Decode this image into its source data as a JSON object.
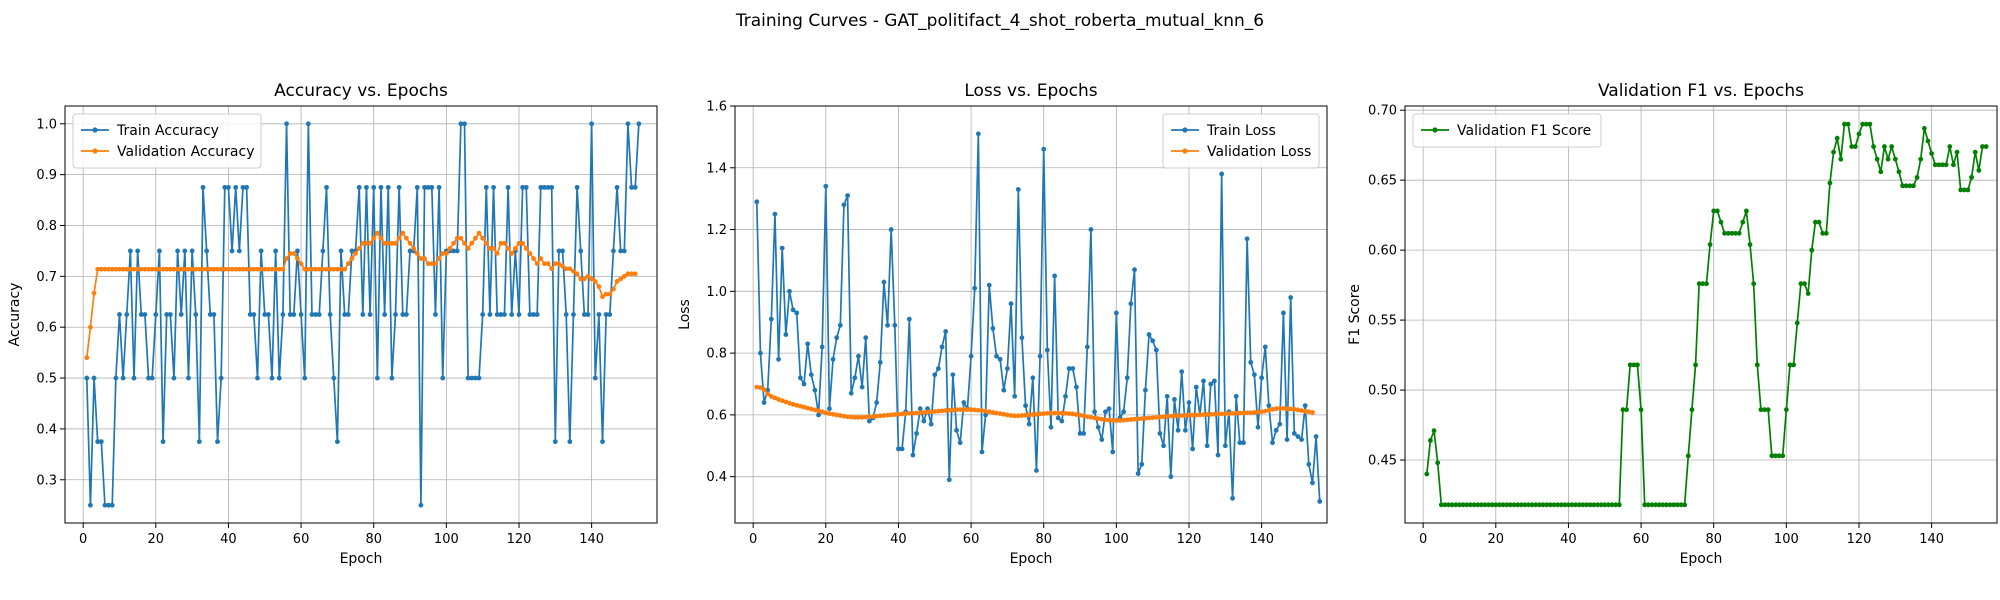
{
  "figure": {
    "suptitle": "Training Curves - GAT_politifact_4_shot_roberta_mutual_knn_6"
  },
  "colors": {
    "blue": "#1f77b4",
    "orange": "#ff7f0e",
    "green": "#008000"
  },
  "chart_data": [
    {
      "type": "line",
      "title": "Accuracy vs. Epochs",
      "xlabel": "Epoch",
      "ylabel": "Accuracy",
      "xlim": [
        -5,
        158
      ],
      "ylim": [
        0.215,
        1.035
      ],
      "xticks": [
        0,
        20,
        40,
        60,
        80,
        100,
        120,
        140
      ],
      "yticks": [
        0.3,
        0.4,
        0.5,
        0.6,
        0.7,
        0.8,
        0.9,
        1.0
      ],
      "tick_format": 1,
      "grid": true,
      "legend": "upper left",
      "series": [
        {
          "name": "Train Accuracy",
          "color": "#1f77b4",
          "values": [
            0.5,
            0.25,
            0.5,
            0.375,
            0.375,
            0.25,
            0.25,
            0.25,
            0.5,
            0.625,
            0.5,
            0.625,
            0.75,
            0.5,
            0.75,
            0.625,
            0.625,
            0.5,
            0.5,
            0.625,
            0.75,
            0.375,
            0.625,
            0.625,
            0.5,
            0.75,
            0.625,
            0.75,
            0.5,
            0.75,
            0.625,
            0.375,
            0.875,
            0.75,
            0.625,
            0.625,
            0.375,
            0.5,
            0.875,
            0.875,
            0.75,
            0.875,
            0.75,
            0.875,
            0.875,
            0.625,
            0.625,
            0.5,
            0.75,
            0.625,
            0.625,
            0.5,
            0.75,
            0.5,
            0.625,
            1.0,
            0.625,
            0.625,
            0.75,
            0.625,
            0.5,
            1.0,
            0.625,
            0.625,
            0.625,
            0.75,
            0.875,
            0.625,
            0.5,
            0.375,
            0.75,
            0.625,
            0.625,
            0.75,
            0.75,
            0.875,
            0.625,
            0.875,
            0.625,
            0.875,
            0.5,
            0.875,
            0.625,
            0.875,
            0.5,
            0.625,
            0.875,
            0.625,
            0.625,
            0.75,
            0.75,
            0.875,
            0.25,
            0.875,
            0.875,
            0.875,
            0.625,
            0.875,
            0.5,
            0.75,
            0.75,
            0.75,
            0.75,
            1.0,
            1.0,
            0.5,
            0.5,
            0.5,
            0.5,
            0.625,
            0.875,
            0.625,
            0.875,
            0.625,
            0.625,
            0.625,
            0.875,
            0.625,
            0.75,
            0.625,
            0.875,
            0.875,
            0.625,
            0.625,
            0.625,
            0.875,
            0.875,
            0.875,
            0.875,
            0.375,
            0.75,
            0.75,
            0.625,
            0.375,
            0.625,
            0.875,
            0.75,
            0.625,
            0.625,
            1.0,
            0.5,
            0.625,
            0.375,
            0.625,
            0.625,
            0.75,
            0.875,
            0.75,
            0.75,
            1.0,
            0.875,
            0.875,
            1.0
          ]
        },
        {
          "name": "Validation Accuracy",
          "color": "#ff7f0e",
          "values": [
            0.54,
            0.6,
            0.667,
            0.714,
            0.714,
            0.714,
            0.714,
            0.714,
            0.714,
            0.714,
            0.714,
            0.714,
            0.714,
            0.714,
            0.714,
            0.714,
            0.714,
            0.714,
            0.714,
            0.714,
            0.714,
            0.714,
            0.714,
            0.714,
            0.714,
            0.714,
            0.714,
            0.714,
            0.714,
            0.714,
            0.714,
            0.714,
            0.714,
            0.714,
            0.714,
            0.714,
            0.714,
            0.714,
            0.714,
            0.714,
            0.714,
            0.714,
            0.714,
            0.714,
            0.714,
            0.714,
            0.714,
            0.714,
            0.714,
            0.714,
            0.714,
            0.714,
            0.714,
            0.714,
            0.714,
            0.735,
            0.745,
            0.745,
            0.735,
            0.725,
            0.714,
            0.714,
            0.714,
            0.714,
            0.714,
            0.714,
            0.714,
            0.714,
            0.714,
            0.714,
            0.714,
            0.714,
            0.725,
            0.735,
            0.745,
            0.755,
            0.765,
            0.765,
            0.765,
            0.775,
            0.785,
            0.775,
            0.765,
            0.765,
            0.765,
            0.765,
            0.775,
            0.785,
            0.775,
            0.765,
            0.755,
            0.745,
            0.735,
            0.735,
            0.725,
            0.725,
            0.725,
            0.735,
            0.745,
            0.745,
            0.755,
            0.765,
            0.775,
            0.775,
            0.765,
            0.755,
            0.765,
            0.775,
            0.785,
            0.775,
            0.765,
            0.755,
            0.755,
            0.745,
            0.765,
            0.765,
            0.755,
            0.745,
            0.755,
            0.765,
            0.765,
            0.755,
            0.745,
            0.735,
            0.725,
            0.735,
            0.725,
            0.725,
            0.715,
            0.725,
            0.725,
            0.72,
            0.715,
            0.715,
            0.71,
            0.705,
            0.695,
            0.695,
            0.7,
            0.695,
            0.69,
            0.68,
            0.66,
            0.665,
            0.665,
            0.675,
            0.69,
            0.695,
            0.7,
            0.705,
            0.705,
            0.705
          ]
        }
      ]
    },
    {
      "type": "line",
      "title": "Loss vs. Epochs",
      "xlabel": "Epoch",
      "ylabel": "Loss",
      "xlim": [
        -5,
        158
      ],
      "ylim": [
        0.25,
        1.6
      ],
      "xticks": [
        0,
        20,
        40,
        60,
        80,
        100,
        120,
        140
      ],
      "yticks": [
        0.4,
        0.6,
        0.8,
        1.0,
        1.2,
        1.4,
        1.6
      ],
      "tick_format": 1,
      "grid": true,
      "legend": "upper right",
      "series": [
        {
          "name": "Train Loss",
          "color": "#1f77b4",
          "values": [
            1.29,
            0.8,
            0.64,
            0.68,
            0.91,
            1.25,
            0.78,
            1.14,
            0.86,
            1.0,
            0.94,
            0.93,
            0.72,
            0.7,
            0.83,
            0.73,
            0.68,
            0.6,
            0.82,
            1.34,
            0.62,
            0.78,
            0.85,
            0.89,
            1.28,
            1.31,
            0.67,
            0.72,
            0.79,
            0.69,
            0.85,
            0.58,
            0.59,
            0.64,
            0.77,
            1.03,
            0.89,
            1.2,
            0.89,
            0.49,
            0.49,
            0.61,
            0.91,
            0.47,
            0.54,
            0.62,
            0.58,
            0.62,
            0.57,
            0.73,
            0.75,
            0.82,
            0.87,
            0.39,
            0.73,
            0.55,
            0.51,
            0.64,
            0.62,
            0.79,
            1.01,
            1.51,
            0.48,
            0.6,
            1.02,
            0.88,
            0.79,
            0.78,
            0.68,
            0.75,
            0.96,
            0.66,
            1.33,
            0.85,
            0.63,
            0.57,
            0.72,
            0.42,
            0.79,
            1.46,
            0.81,
            0.56,
            1.05,
            0.59,
            0.58,
            0.66,
            0.75,
            0.75,
            0.69,
            0.54,
            0.54,
            0.82,
            1.2,
            0.61,
            0.56,
            0.52,
            0.61,
            0.62,
            0.48,
            0.93,
            0.59,
            0.61,
            0.72,
            0.96,
            1.07,
            0.41,
            0.44,
            0.68,
            0.86,
            0.84,
            0.81,
            0.54,
            0.5,
            0.66,
            0.4,
            0.65,
            0.55,
            0.74,
            0.55,
            0.64,
            0.49,
            0.69,
            0.6,
            0.71,
            0.5,
            0.7,
            0.71,
            0.47,
            1.38,
            0.5,
            0.61,
            0.33,
            0.66,
            0.51,
            0.51,
            1.17,
            0.77,
            0.73,
            0.56,
            0.72,
            0.82,
            0.63,
            0.51,
            0.55,
            0.57,
            0.93,
            0.52,
            0.98,
            0.54,
            0.53,
            0.52,
            0.63,
            0.44,
            0.38,
            0.53,
            0.32
          ]
        },
        {
          "name": "Validation Loss",
          "color": "#ff7f0e",
          "values": [
            0.69,
            0.688,
            0.682,
            0.668,
            0.66,
            0.655,
            0.65,
            0.646,
            0.642,
            0.638,
            0.634,
            0.631,
            0.628,
            0.625,
            0.622,
            0.619,
            0.616,
            0.613,
            0.61,
            0.607,
            0.604,
            0.602,
            0.6,
            0.598,
            0.596,
            0.594,
            0.593,
            0.592,
            0.592,
            0.592,
            0.593,
            0.594,
            0.595,
            0.596,
            0.597,
            0.598,
            0.599,
            0.6,
            0.601,
            0.602,
            0.603,
            0.604,
            0.605,
            0.605,
            0.606,
            0.607,
            0.608,
            0.609,
            0.61,
            0.611,
            0.612,
            0.613,
            0.614,
            0.615,
            0.616,
            0.617,
            0.617,
            0.617,
            0.617,
            0.617,
            0.616,
            0.615,
            0.614,
            0.612,
            0.61,
            0.608,
            0.606,
            0.604,
            0.602,
            0.6,
            0.598,
            0.597,
            0.597,
            0.598,
            0.599,
            0.6,
            0.601,
            0.602,
            0.603,
            0.604,
            0.605,
            0.606,
            0.606,
            0.606,
            0.606,
            0.605,
            0.604,
            0.603,
            0.601,
            0.599,
            0.597,
            0.594,
            0.592,
            0.59,
            0.588,
            0.586,
            0.584,
            0.583,
            0.582,
            0.582,
            0.582,
            0.583,
            0.584,
            0.585,
            0.586,
            0.587,
            0.588,
            0.589,
            0.59,
            0.591,
            0.592,
            0.593,
            0.594,
            0.595,
            0.596,
            0.597,
            0.597,
            0.598,
            0.598,
            0.599,
            0.599,
            0.6,
            0.6,
            0.601,
            0.601,
            0.602,
            0.602,
            0.603,
            0.603,
            0.604,
            0.604,
            0.605,
            0.605,
            0.606,
            0.606,
            0.607,
            0.607,
            0.608,
            0.609,
            0.61,
            0.612,
            0.615,
            0.618,
            0.62,
            0.621,
            0.621,
            0.62,
            0.619,
            0.618,
            0.616,
            0.614,
            0.612,
            0.61,
            0.608
          ]
        }
      ]
    },
    {
      "type": "line",
      "title": "Validation F1 vs. Epochs",
      "xlabel": "Epoch",
      "ylabel": "F1 Score",
      "xlim": [
        -5,
        158
      ],
      "ylim": [
        0.405,
        0.703
      ],
      "xticks": [
        0,
        20,
        40,
        60,
        80,
        100,
        120,
        140
      ],
      "yticks": [
        0.45,
        0.5,
        0.55,
        0.6,
        0.65,
        0.7
      ],
      "tick_format": 2,
      "grid": true,
      "legend": "upper left",
      "series": [
        {
          "name": "Validation F1 Score",
          "color": "#008000",
          "values": [
            0.44,
            0.464,
            0.471,
            0.448,
            0.418,
            0.418,
            0.418,
            0.418,
            0.418,
            0.418,
            0.418,
            0.418,
            0.418,
            0.418,
            0.418,
            0.418,
            0.418,
            0.418,
            0.418,
            0.418,
            0.418,
            0.418,
            0.418,
            0.418,
            0.418,
            0.418,
            0.418,
            0.418,
            0.418,
            0.418,
            0.418,
            0.418,
            0.418,
            0.418,
            0.418,
            0.418,
            0.418,
            0.418,
            0.418,
            0.418,
            0.418,
            0.418,
            0.418,
            0.418,
            0.418,
            0.418,
            0.418,
            0.418,
            0.418,
            0.418,
            0.418,
            0.418,
            0.418,
            0.418,
            0.486,
            0.486,
            0.518,
            0.518,
            0.518,
            0.486,
            0.418,
            0.418,
            0.418,
            0.418,
            0.418,
            0.418,
            0.418,
            0.418,
            0.418,
            0.418,
            0.418,
            0.418,
            0.453,
            0.486,
            0.518,
            0.576,
            0.576,
            0.576,
            0.604,
            0.628,
            0.628,
            0.62,
            0.612,
            0.612,
            0.612,
            0.612,
            0.612,
            0.62,
            0.628,
            0.604,
            0.576,
            0.518,
            0.486,
            0.486,
            0.486,
            0.453,
            0.453,
            0.453,
            0.453,
            0.486,
            0.518,
            0.518,
            0.548,
            0.576,
            0.576,
            0.569,
            0.6,
            0.62,
            0.62,
            0.612,
            0.612,
            0.648,
            0.67,
            0.68,
            0.665,
            0.69,
            0.69,
            0.674,
            0.674,
            0.683,
            0.69,
            0.69,
            0.69,
            0.674,
            0.665,
            0.656,
            0.674,
            0.665,
            0.674,
            0.665,
            0.656,
            0.646,
            0.646,
            0.646,
            0.646,
            0.652,
            0.665,
            0.687,
            0.678,
            0.669,
            0.661,
            0.661,
            0.661,
            0.661,
            0.674,
            0.661,
            0.67,
            0.643,
            0.643,
            0.643,
            0.652,
            0.67,
            0.657,
            0.674,
            0.674
          ]
        }
      ]
    }
  ]
}
